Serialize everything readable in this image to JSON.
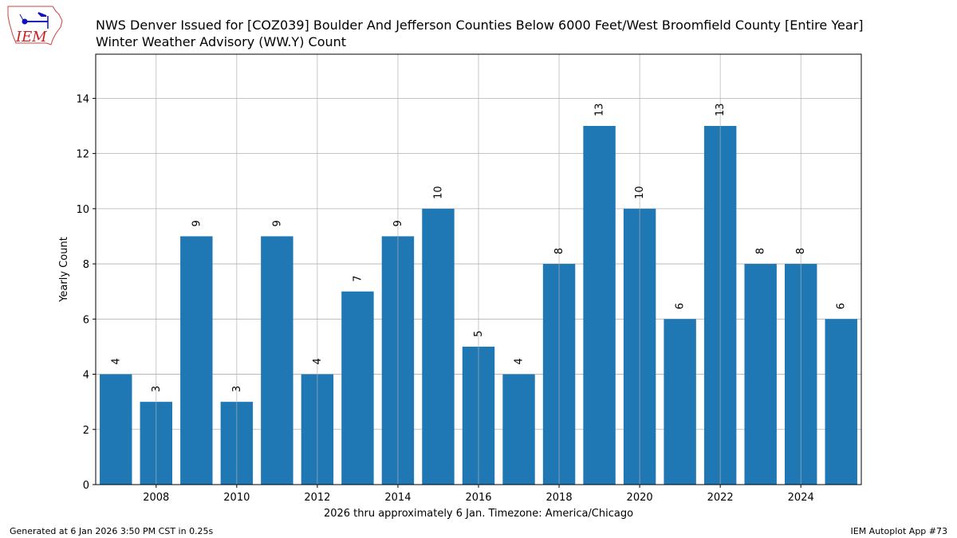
{
  "logo": {
    "text": "IEM",
    "colors": {
      "state": "#d04040",
      "symbol": "#1010c0",
      "text": "#cc2020"
    }
  },
  "footer": {
    "left": "Generated at 6 Jan 2026 3:50 PM CST in 0.25s",
    "right": "IEM Autoplot App #73"
  },
  "chart_data": {
    "type": "bar",
    "title": "NWS Denver Issued for [COZ039] Boulder And Jefferson Counties Below 6000 Feet/West Broomfield County [Entire Year]",
    "subtitle": "Winter Weather Advisory (WW.Y) Count",
    "xlabel": "2026 thru approximately 6 Jan. Timezone: America/Chicago",
    "ylabel": "Yearly Count",
    "x": [
      2007,
      2008,
      2009,
      2010,
      2011,
      2012,
      2013,
      2014,
      2015,
      2016,
      2017,
      2018,
      2019,
      2020,
      2021,
      2022,
      2023,
      2024,
      2025
    ],
    "values": [
      4,
      3,
      9,
      3,
      9,
      4,
      7,
      9,
      10,
      5,
      4,
      8,
      13,
      10,
      6,
      13,
      8,
      8,
      6
    ],
    "xlim": [
      2006.5,
      2025.5
    ],
    "ylim": [
      0,
      15.6
    ],
    "xticks": [
      "2008",
      "2010",
      "2012",
      "2014",
      "2016",
      "2018",
      "2020",
      "2022",
      "2024"
    ],
    "yticks": [
      "0",
      "2",
      "4",
      "6",
      "8",
      "10",
      "12",
      "14"
    ],
    "grid": true,
    "bar_color": "#1f77b4",
    "grid_color": "#b0b0b0"
  }
}
